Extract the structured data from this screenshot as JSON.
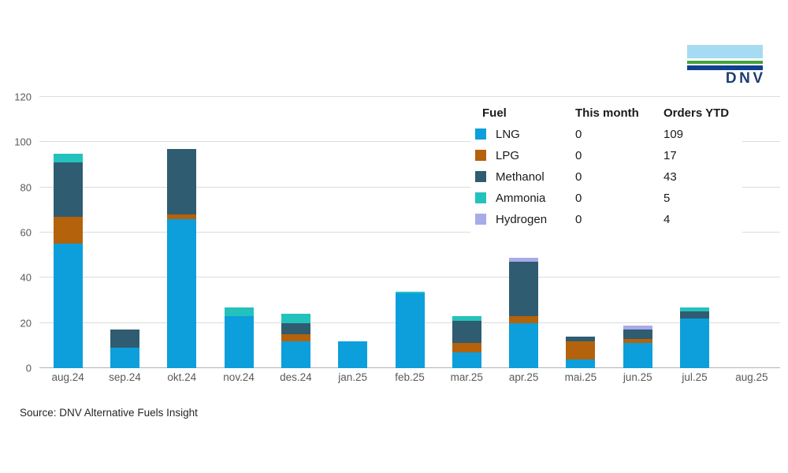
{
  "chart_data": {
    "type": "bar",
    "stacked": true,
    "title": "",
    "xlabel": "",
    "ylabel": "",
    "ylim": [
      0,
      120
    ],
    "ytick_step": 20,
    "grid": true,
    "legend_position": "top-right",
    "categories": [
      "aug.24",
      "sep.24",
      "okt.24",
      "nov.24",
      "des.24",
      "jan.25",
      "feb.25",
      "mar.25",
      "apr.25",
      "mai.25",
      "jun.25",
      "jul.25",
      "aug.25"
    ],
    "series": [
      {
        "name": "LNG",
        "color": "#0C9FDB",
        "values": [
          55,
          9,
          66,
          23,
          12,
          12,
          33,
          7,
          20,
          4,
          11,
          22,
          0
        ]
      },
      {
        "name": "LPG",
        "color": "#B4620B",
        "values": [
          12,
          0,
          2,
          0,
          3,
          0,
          0,
          4,
          3,
          8,
          2,
          0,
          0
        ]
      },
      {
        "name": "Methanol",
        "color": "#2F5C70",
        "values": [
          24,
          8,
          29,
          0,
          5,
          0,
          0,
          10,
          24,
          2,
          4,
          3,
          0
        ]
      },
      {
        "name": "Ammonia",
        "color": "#24C2BC",
        "values": [
          4,
          0,
          0,
          4,
          4,
          0,
          1,
          2,
          0,
          0,
          0,
          2,
          0
        ]
      },
      {
        "name": "Hydrogen",
        "color": "#A8ABE8",
        "values": [
          0,
          0,
          0,
          0,
          0,
          0,
          0,
          0,
          2,
          0,
          2,
          0,
          0
        ]
      }
    ],
    "monthly_totals": [
      95,
      17,
      97,
      27,
      24,
      12,
      34,
      23,
      49,
      14,
      19,
      27,
      0
    ]
  },
  "legend": {
    "headers": [
      "Fuel",
      "This month",
      "Orders YTD"
    ],
    "rows": [
      {
        "label": "LNG",
        "color": "#0C9FDB",
        "this_month": "0",
        "orders_ytd": "109"
      },
      {
        "label": "LPG",
        "color": "#B4620B",
        "this_month": "0",
        "orders_ytd": "17"
      },
      {
        "label": "Methanol",
        "color": "#2F5C70",
        "this_month": "0",
        "orders_ytd": "43"
      },
      {
        "label": "Ammonia",
        "color": "#24C2BC",
        "this_month": "0",
        "orders_ytd": "5"
      },
      {
        "label": "Hydrogen",
        "color": "#A8ABE8",
        "this_month": "0",
        "orders_ytd": "4"
      }
    ]
  },
  "source": {
    "text": "Source: DNV Alternative Fuels Insight"
  },
  "logo": {
    "text": "DNV",
    "stripe_colors": {
      "sky": "#A6DCF2",
      "green": "#47A23B",
      "navy": "#10418C"
    },
    "text_color": "#1C3E72"
  },
  "colors": {
    "background": "#FFFFFF",
    "gridline": "#DCDCDC",
    "axis_line": "#B3B3B3",
    "axis_label": "#595959",
    "text": "#1A1A1A"
  }
}
